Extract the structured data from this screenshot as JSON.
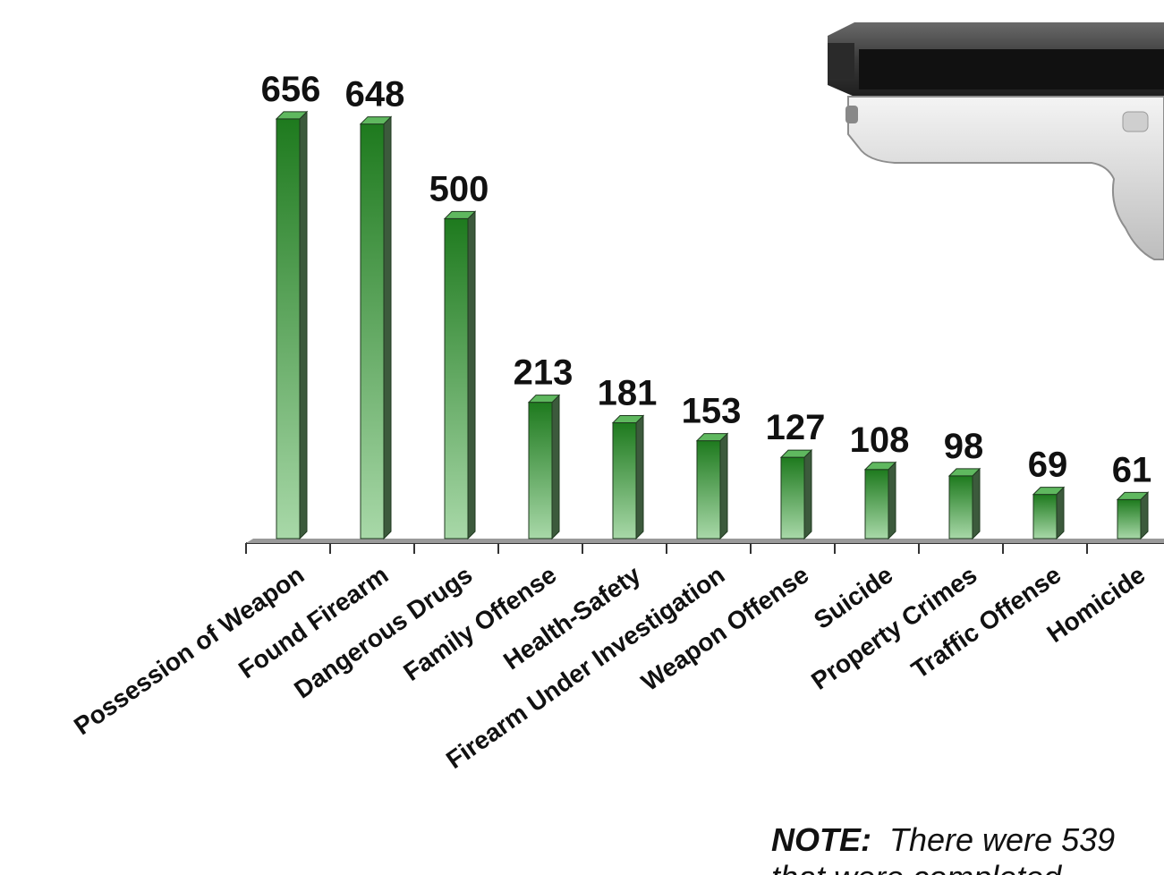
{
  "chart_data": {
    "type": "bar",
    "categories": [
      "Possession of Weapon",
      "Found Firearm",
      "Dangerous Drugs",
      "Family Offense",
      "Health-Safety",
      "Firearm Under Investigation",
      "Weapon Offense",
      "Suicide",
      "Property Crimes",
      "Traffic Offense",
      "Homicide"
    ],
    "values": [
      656,
      648,
      500,
      213,
      181,
      153,
      127,
      108,
      98,
      69,
      61
    ],
    "data_labels": [
      "656",
      "648",
      "500",
      "213",
      "181",
      "153",
      "127",
      "108",
      "98",
      "69",
      "61"
    ],
    "ylim": [
      0,
      700
    ],
    "grid": false,
    "legend": "none",
    "colors": {
      "bar_top": "#1e7a1e",
      "bar_bottom": "#a8d8a8",
      "bar_side": "#3c5a3c",
      "bar_cap": "#5fb85f",
      "axis": "#333333"
    }
  },
  "note": {
    "label": "NOTE:",
    "text": "There were 539",
    "line2": "that were completed"
  },
  "image": {
    "icon": "pistol-icon"
  }
}
